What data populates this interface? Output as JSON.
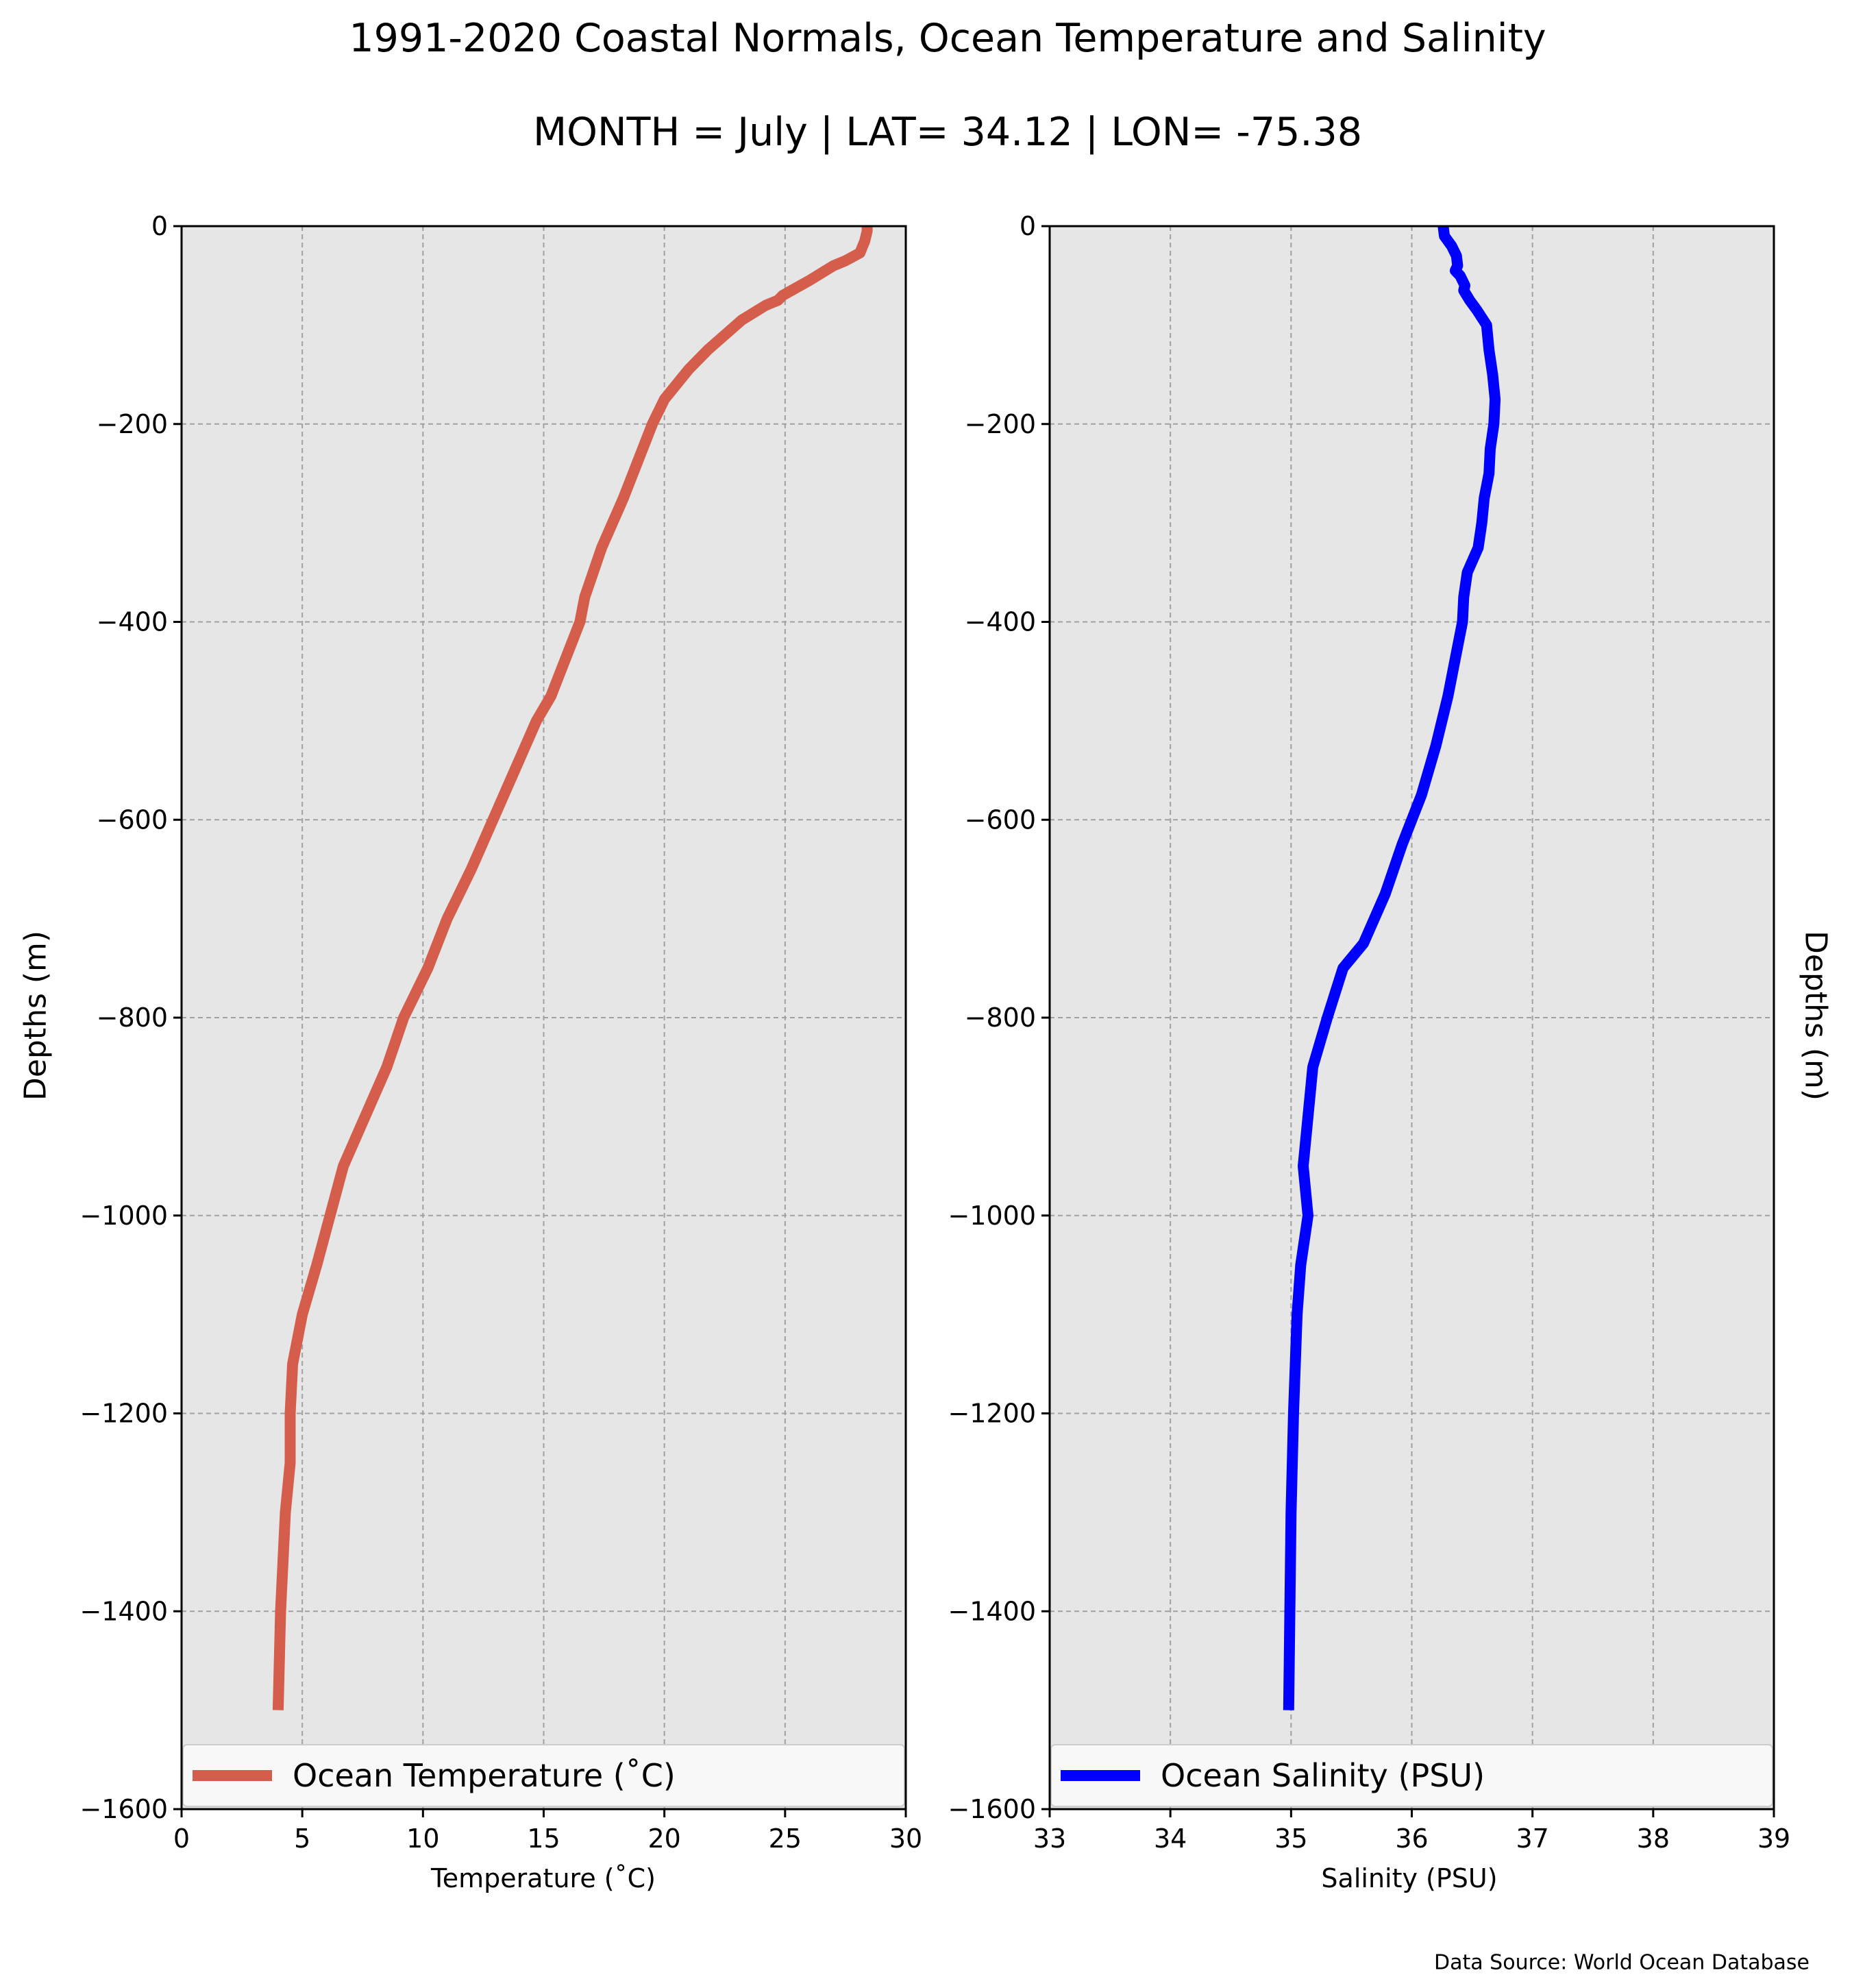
{
  "figure": {
    "title": "1991-2020 Coastal Normals, Ocean Temperature and Salinity",
    "subtitle": "MONTH = July | LAT= 34.12 | LON= -75.38",
    "source_note": "Data Source: World Ocean Database"
  },
  "colors": {
    "plot_background": "#e6e6e6",
    "grid": "#a0a0a0",
    "temperature_line": "#d45d4b",
    "salinity_line": "#0000ff"
  },
  "chart_data": [
    {
      "type": "line",
      "orientation": "depth-profile",
      "xlabel": "Temperature ($^\\circ$C)",
      "xlabel_display": "Temperature (˚C)",
      "ylabel": "Depths (m)",
      "xlim": [
        0,
        30
      ],
      "ylim": [
        -1600,
        0
      ],
      "xticks": [
        0,
        5,
        10,
        15,
        20,
        25,
        30
      ],
      "yticks": [
        0,
        -200,
        -400,
        -600,
        -800,
        -1000,
        -1200,
        -1400,
        -1600
      ],
      "ytick_labels": [
        "0",
        "−200",
        "−400",
        "−600",
        "−800",
        "−1000",
        "−1200",
        "−1400",
        "−1600"
      ],
      "grid": true,
      "legend_position": "lower-center",
      "series": [
        {
          "name": "Ocean Temperature (˚C)",
          "color": "#d45d4b",
          "x": [
            28.4,
            28.4,
            28.3,
            28.1,
            27.5,
            27.0,
            26.0,
            24.9,
            24.7,
            24.2,
            23.2,
            21.8,
            21.0,
            20.0,
            19.5,
            18.3,
            17.4,
            16.7,
            16.5,
            16.1,
            15.7,
            15.3,
            14.7,
            13.8,
            12.9,
            12.0,
            11.0,
            10.2,
            9.2,
            8.5,
            6.7,
            5.6,
            5.0,
            4.6,
            4.5,
            4.5,
            4.3,
            4.2,
            4.1,
            4.0
          ],
          "y": [
            0,
            -5,
            -15,
            -27,
            -35,
            -40,
            -55,
            -70,
            -75,
            -80,
            -95,
            -125,
            -145,
            -175,
            -200,
            -275,
            -325,
            -375,
            -400,
            -425,
            -450,
            -475,
            -500,
            -550,
            -600,
            -650,
            -700,
            -750,
            -800,
            -850,
            -950,
            -1050,
            -1100,
            -1150,
            -1200,
            -1250,
            -1300,
            -1350,
            -1400,
            -1500
          ]
        }
      ]
    },
    {
      "type": "line",
      "orientation": "depth-profile",
      "xlabel": "Salinity (PSU)",
      "ylabel": "Depths (m)",
      "xlim": [
        33,
        39
      ],
      "ylim": [
        -1600,
        0
      ],
      "xticks": [
        33,
        34,
        35,
        36,
        37,
        38,
        39
      ],
      "yticks": [
        0,
        -200,
        -400,
        -600,
        -800,
        -1000,
        -1200,
        -1400,
        -1600
      ],
      "ytick_labels": [
        "0",
        "−200",
        "−400",
        "−600",
        "−800",
        "−1000",
        "−1200",
        "−1400",
        "−1600"
      ],
      "grid": true,
      "legend_position": "lower-center",
      "series": [
        {
          "name": "Ocean Salinity (PSU)",
          "color": "#0000ff",
          "x": [
            36.26,
            36.27,
            36.33,
            36.37,
            36.38,
            36.36,
            36.4,
            36.44,
            36.43,
            36.48,
            36.54,
            36.62,
            36.64,
            36.67,
            36.69,
            36.68,
            36.65,
            36.64,
            36.6,
            36.58,
            36.55,
            36.46,
            36.43,
            36.42,
            36.38,
            36.3,
            36.2,
            36.08,
            35.92,
            35.78,
            35.6,
            35.43,
            35.3,
            35.18,
            35.1,
            35.14,
            35.08,
            35.05,
            35.02,
            35.0,
            34.98
          ],
          "y": [
            0,
            -10,
            -20,
            -30,
            -40,
            -45,
            -50,
            -60,
            -65,
            -75,
            -85,
            -100,
            -125,
            -150,
            -175,
            -200,
            -225,
            -250,
            -275,
            -300,
            -325,
            -350,
            -375,
            -400,
            -425,
            -475,
            -525,
            -575,
            -625,
            -675,
            -725,
            -750,
            -800,
            -850,
            -950,
            -1000,
            -1050,
            -1100,
            -1200,
            -1300,
            -1500
          ]
        }
      ]
    }
  ]
}
